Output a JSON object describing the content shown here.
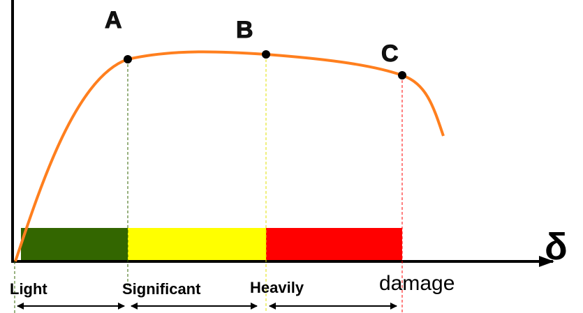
{
  "points": [
    {
      "label": "A"
    },
    {
      "label": "B"
    },
    {
      "label": "C"
    }
  ],
  "axis_label": "δ",
  "zones": [
    {
      "label": "Light"
    },
    {
      "label": "Significant"
    },
    {
      "label": "Heavily"
    },
    {
      "label": "damage"
    }
  ]
}
